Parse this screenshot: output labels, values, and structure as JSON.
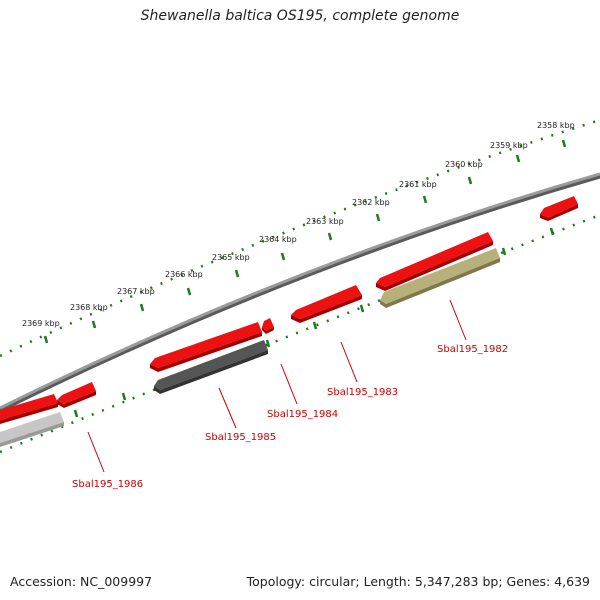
{
  "title": "Shewanella baltica OS195, complete genome",
  "footer": {
    "accession": "Accession: NC_009997",
    "topology": "Topology: circular; Length: 5,347,283 bp; Genes: 4,639"
  },
  "colors": {
    "backbone": "#8a8a8a",
    "tick": "#1e7a1e",
    "gene_red": "#ee1111",
    "gene_dark": "#555555",
    "gene_light": "#bdbdbd",
    "gene_olive": "#b6b07a",
    "label_red": "#cc0000"
  },
  "kbp_ticks": [
    "2358 kbp",
    "2359 kbp",
    "2360 kbp",
    "2361 kbp",
    "2362 kbp",
    "2363 kbp",
    "2364 kbp",
    "2365 kbp",
    "2366 kbp",
    "2367 kbp",
    "2368 kbp",
    "2369 kbp"
  ],
  "gene_labels": [
    "Sbal195_1982",
    "Sbal195_1983",
    "Sbal195_1984",
    "Sbal195_1985",
    "Sbal195_1986"
  ]
}
